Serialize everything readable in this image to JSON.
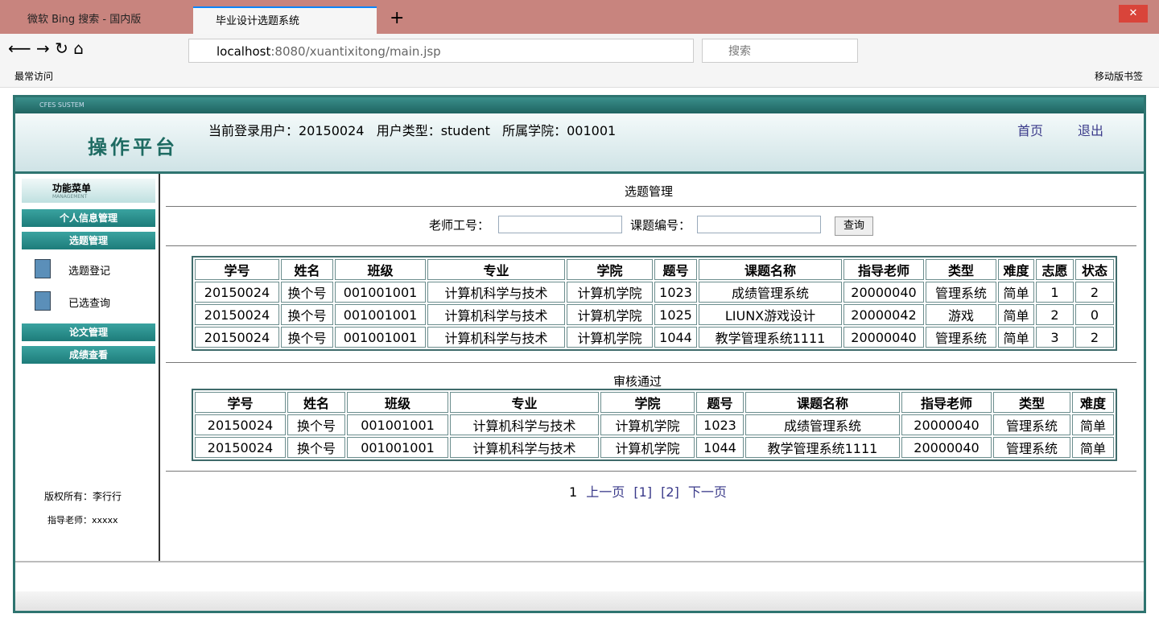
{
  "browser": {
    "tabs": [
      "微软 Bing 搜索 - 国内版",
      "毕业设计选题系统"
    ],
    "url_host": "localhost",
    "url_rest": ":8080/xuantixitong/main.jsp",
    "search_placeholder": "搜索",
    "bookmark": "最常访问",
    "mobile_bookmarks": "移动版书签"
  },
  "app": {
    "system_label": "CFES SUSTEM",
    "logo": "操作平台",
    "user_info": "当前登录用户：20150024   用户类型：student   所属学院：001001",
    "links": [
      "首页",
      "退出"
    ]
  },
  "sidebar": {
    "menu_title": "功能菜单",
    "menu_subtitle": "MANAGEMENT",
    "sections": [
      {
        "title": "个人信息管理",
        "items": []
      },
      {
        "title": "选题管理",
        "items": [
          "选题登记",
          "已选查询"
        ]
      },
      {
        "title": "论文管理",
        "items": []
      },
      {
        "title": "成绩查看",
        "items": []
      }
    ],
    "copyright": "版权所有：李行行",
    "teacher": "指导老师：xxxxx"
  },
  "main": {
    "title": "选题管理",
    "search_labels": [
      "老师工号：",
      "课题编号："
    ],
    "button": "查询",
    "table1": {
      "header": [
        "学号",
        "姓名",
        "班级",
        "专业",
        "学院",
        "题号",
        "课题名称",
        "指导老师",
        "类型",
        "难度",
        "志愿",
        "状态"
      ],
      "rows": [
        [
          "20150024",
          "换个号",
          "001001001",
          "计算机科学与技术",
          "计算机学院",
          "1023",
          "成绩管理系统",
          "20000040",
          "管理系统",
          "简单",
          "1",
          "2"
        ],
        [
          "20150024",
          "换个号",
          "001001001",
          "计算机科学与技术",
          "计算机学院",
          "1025",
          "LIUNX游戏设计",
          "20000042",
          "游戏",
          "简单",
          "2",
          "0"
        ],
        [
          "20150024",
          "换个号",
          "001001001",
          "计算机科学与技术",
          "计算机学院",
          "1044",
          "教学管理系统1111",
          "20000040",
          "管理系统",
          "简单",
          "3",
          "2"
        ]
      ]
    },
    "section2": "审核通过",
    "table2": {
      "header": [
        "学号",
        "姓名",
        "班级",
        "专业",
        "学院",
        "题号",
        "课题名称",
        "指导老师",
        "类型",
        "难度"
      ],
      "rows": [
        [
          "20150024",
          "换个号",
          "001001001",
          "计算机科学与技术",
          "计算机学院",
          "1023",
          "成绩管理系统",
          "20000040",
          "管理系统",
          "简单"
        ],
        [
          "20150024",
          "换个号",
          "001001001",
          "计算机科学与技术",
          "计算机学院",
          "1044",
          "教学管理系统1111",
          "20000040",
          "管理系统",
          "简单"
        ]
      ]
    },
    "pagination": {
      "current": "1",
      "prev": "上一页",
      "pages": [
        "[1]",
        "[2]"
      ],
      "next": "下一页"
    }
  }
}
